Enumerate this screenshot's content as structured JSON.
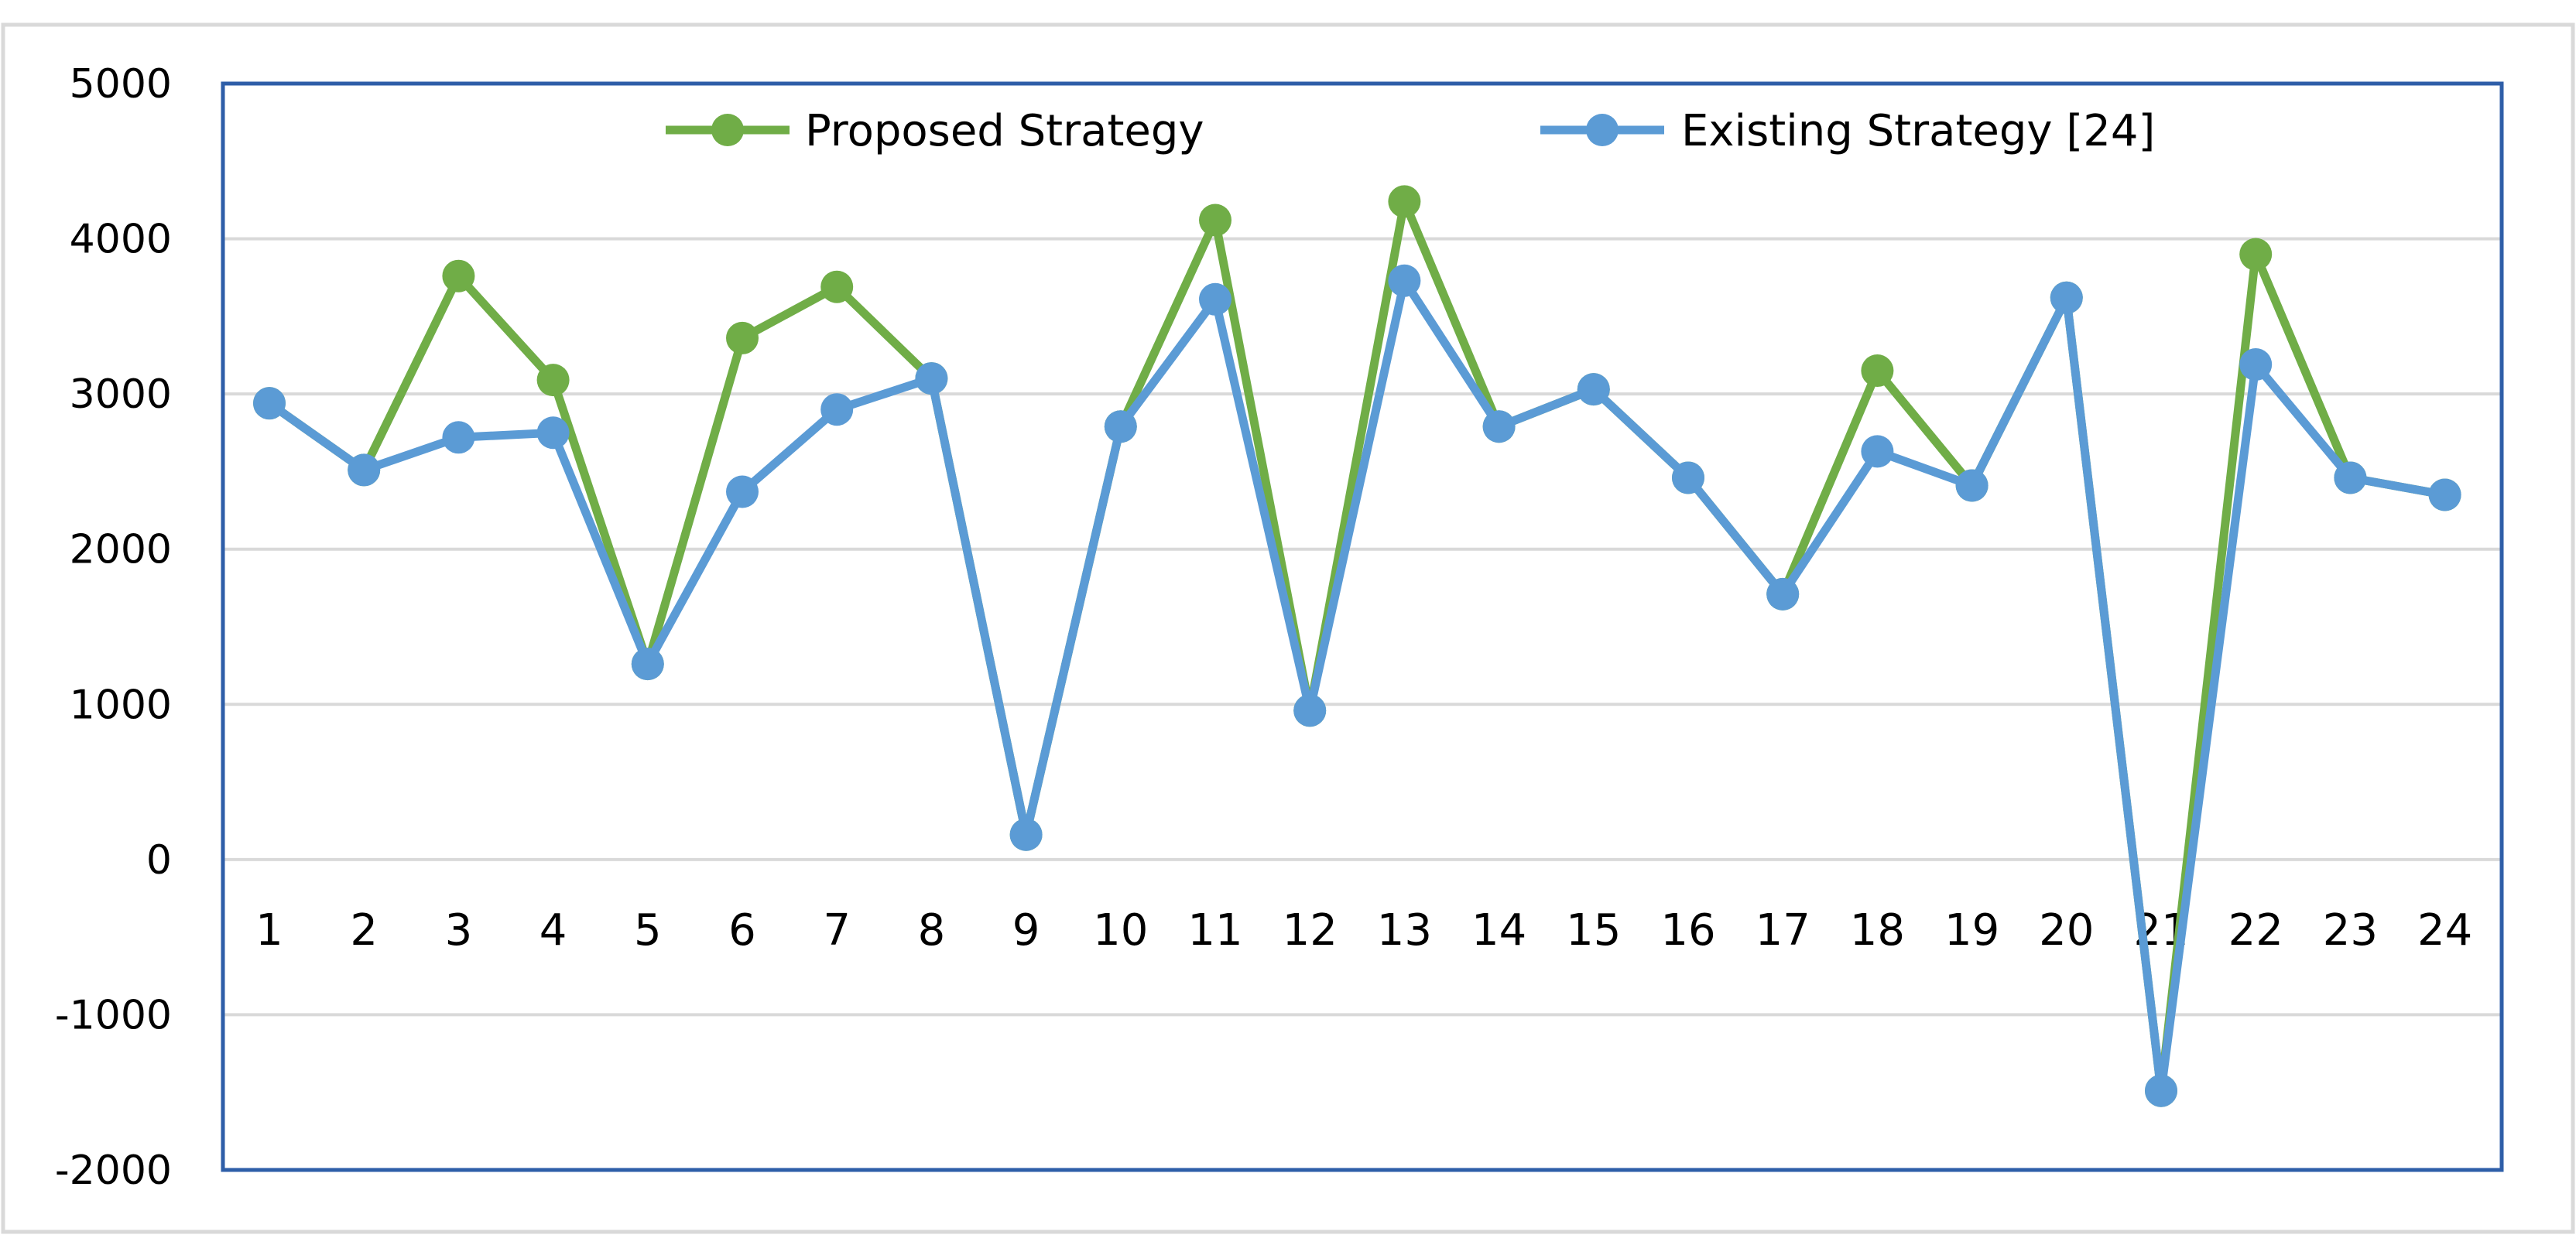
{
  "chart_data": {
    "type": "line",
    "categories": [
      "1",
      "2",
      "3",
      "4",
      "5",
      "6",
      "7",
      "8",
      "9",
      "10",
      "11",
      "12",
      "13",
      "14",
      "15",
      "16",
      "17",
      "18",
      "19",
      "20",
      "21",
      "22",
      "23",
      "24"
    ],
    "series": [
      {
        "name": "Proposed Strategy",
        "color": "#70ad47",
        "values": [
          2940,
          2510,
          3760,
          3090,
          1260,
          3360,
          3690,
          3100,
          160,
          2790,
          4120,
          960,
          4240,
          2790,
          3030,
          2460,
          1710,
          3150,
          2410,
          3620,
          -1490,
          3900,
          2460,
          2350
        ]
      },
      {
        "name": "Existing Strategy [24]",
        "color": "#5b9bd5",
        "values": [
          2940,
          2510,
          2720,
          2750,
          1260,
          2370,
          2900,
          3100,
          160,
          2790,
          3610,
          960,
          3730,
          2790,
          3030,
          2460,
          1710,
          2630,
          2410,
          3620,
          -1490,
          3190,
          2460,
          2350
        ]
      }
    ],
    "ylim": [
      -2000,
      5000
    ],
    "yticks": [
      "5000",
      "4000",
      "3000",
      "2000",
      "1000",
      "0",
      "-1000",
      "-2000"
    ],
    "grid": true,
    "legend": "top-center",
    "title": "",
    "xlabel": "",
    "ylabel": ""
  }
}
